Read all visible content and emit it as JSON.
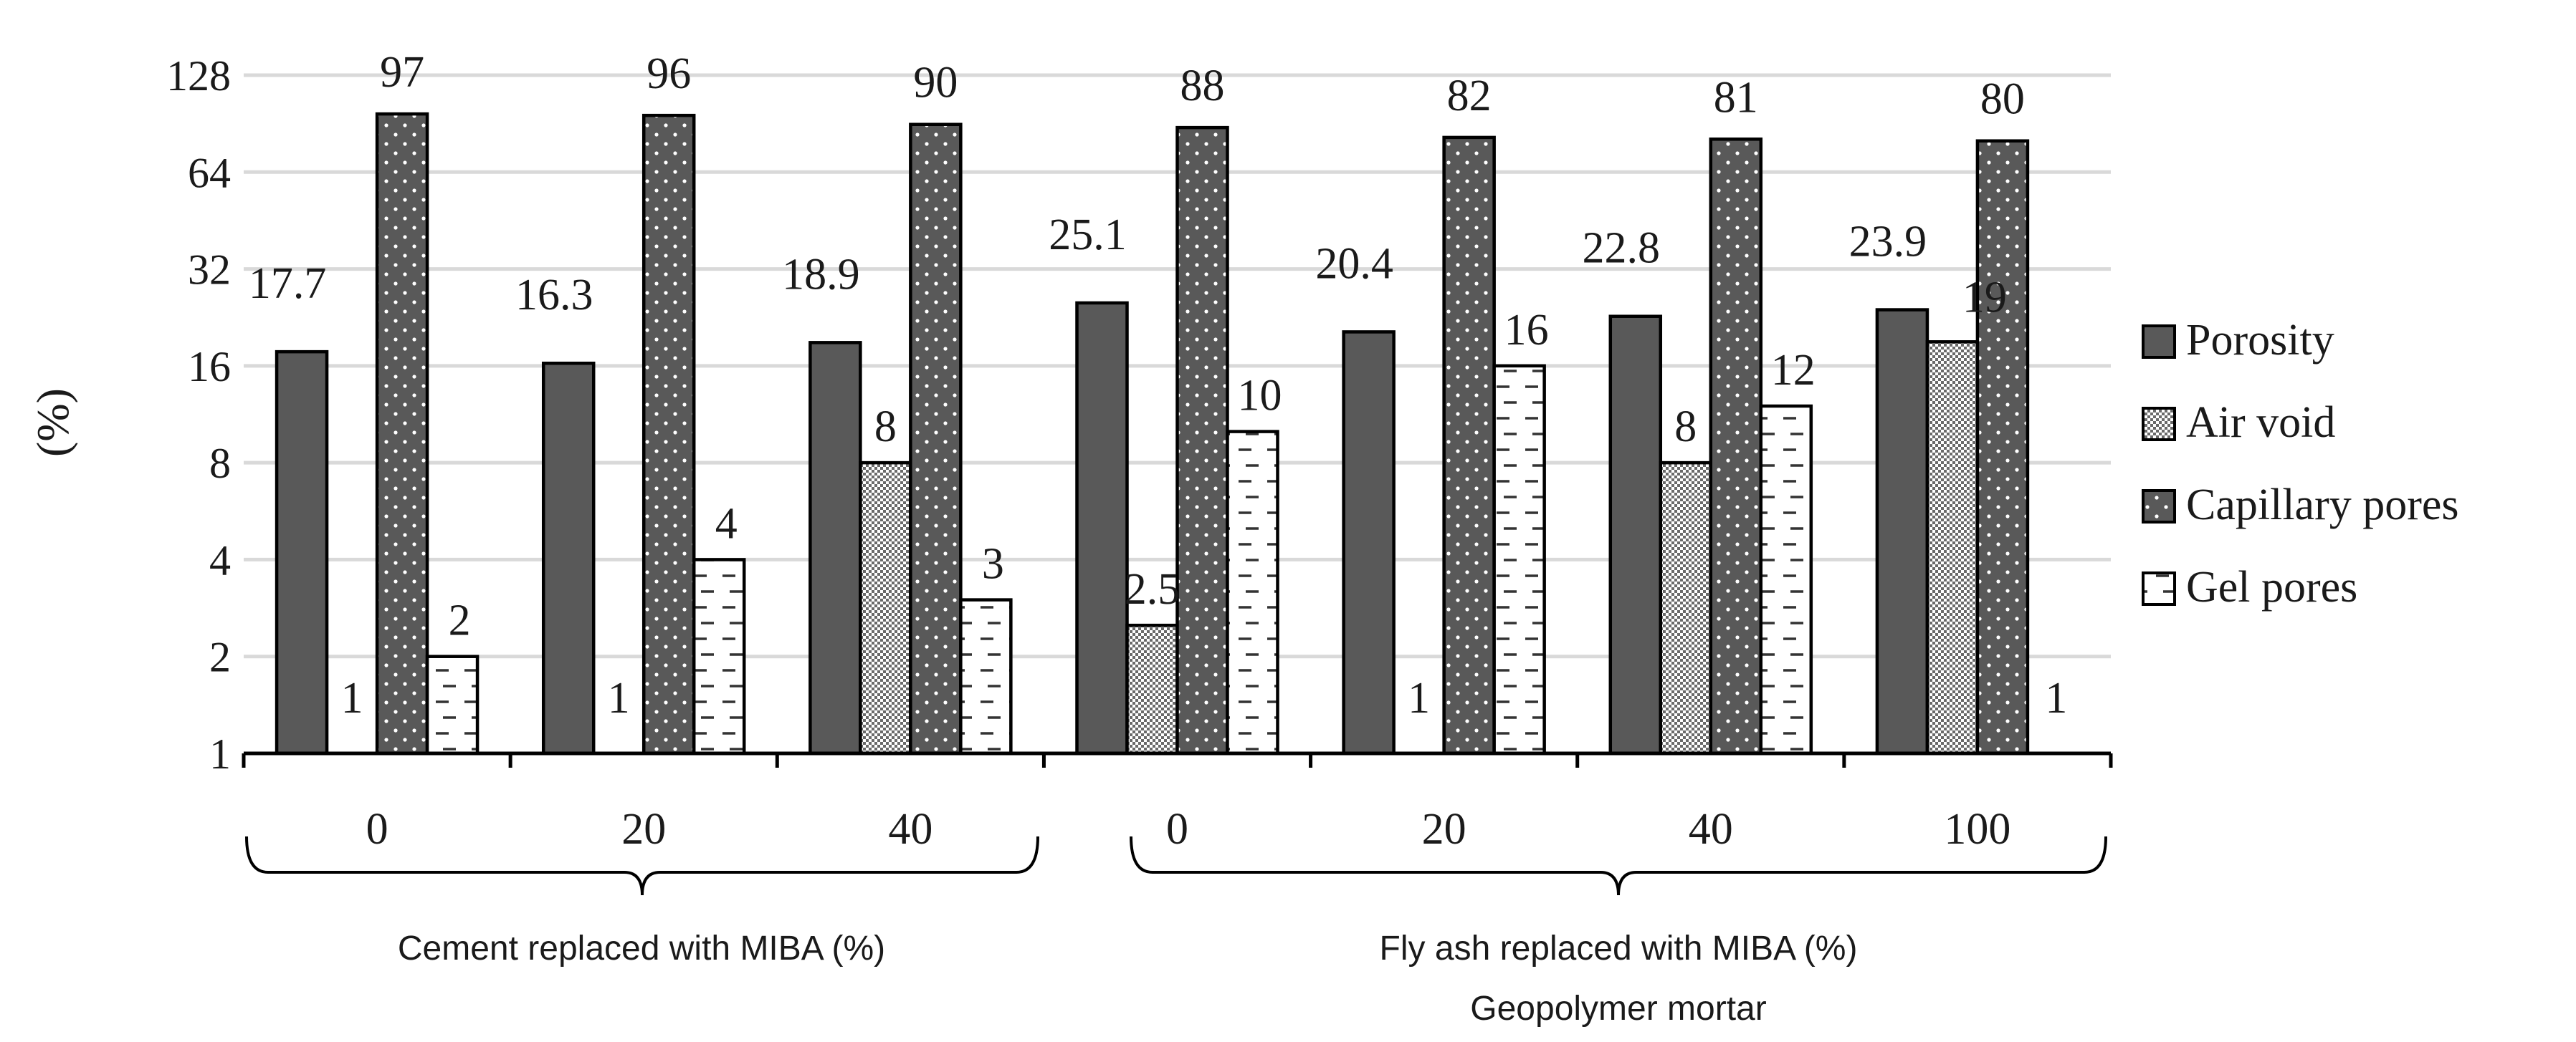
{
  "chart_data": {
    "type": "bar",
    "scale": "log2",
    "ylabel": "(%)",
    "ylim": [
      1,
      128
    ],
    "yticks": [
      "1",
      "2",
      "4",
      "8",
      "16",
      "32",
      "64",
      "128"
    ],
    "categories": [
      "0",
      "20",
      "40",
      "0",
      "20",
      "40",
      "100"
    ],
    "groups": [
      {
        "label": "Cement replaced with MIBA (%)",
        "sublabel": ""
      },
      {
        "label": "Fly ash replaced with MIBA (%)",
        "sublabel": "Geopolymer mortar"
      }
    ],
    "series": [
      {
        "name": "Porosity",
        "pattern": "solid",
        "values": [
          17.7,
          16.3,
          18.9,
          25.1,
          20.4,
          22.8,
          23.9
        ],
        "labels": [
          "17.7",
          "16.3",
          "18.9",
          "25.1",
          "20.4",
          "22.8",
          "23.9"
        ]
      },
      {
        "name": "Air void",
        "pattern": "check",
        "values": [
          1,
          1,
          8,
          2.5,
          1,
          8,
          19
        ],
        "labels": [
          "1",
          "1",
          "8",
          "2.5",
          "1",
          "8",
          "19"
        ]
      },
      {
        "name": "Capillary pores",
        "pattern": "dots",
        "values": [
          97,
          96,
          90,
          88,
          82,
          81,
          80
        ],
        "labels": [
          "97",
          "96",
          "90",
          "88",
          "82",
          "81",
          "80"
        ]
      },
      {
        "name": "Gel pores",
        "pattern": "dashes",
        "values": [
          2,
          4,
          3,
          10,
          16,
          12,
          1
        ],
        "labels": [
          "2",
          "4",
          "3",
          "10",
          "16",
          "12",
          "1"
        ]
      }
    ],
    "legend_position": "right",
    "grid": true,
    "colors": {
      "dark": "#595959",
      "edge": "#000000",
      "grid": "#d9d9d9"
    }
  }
}
